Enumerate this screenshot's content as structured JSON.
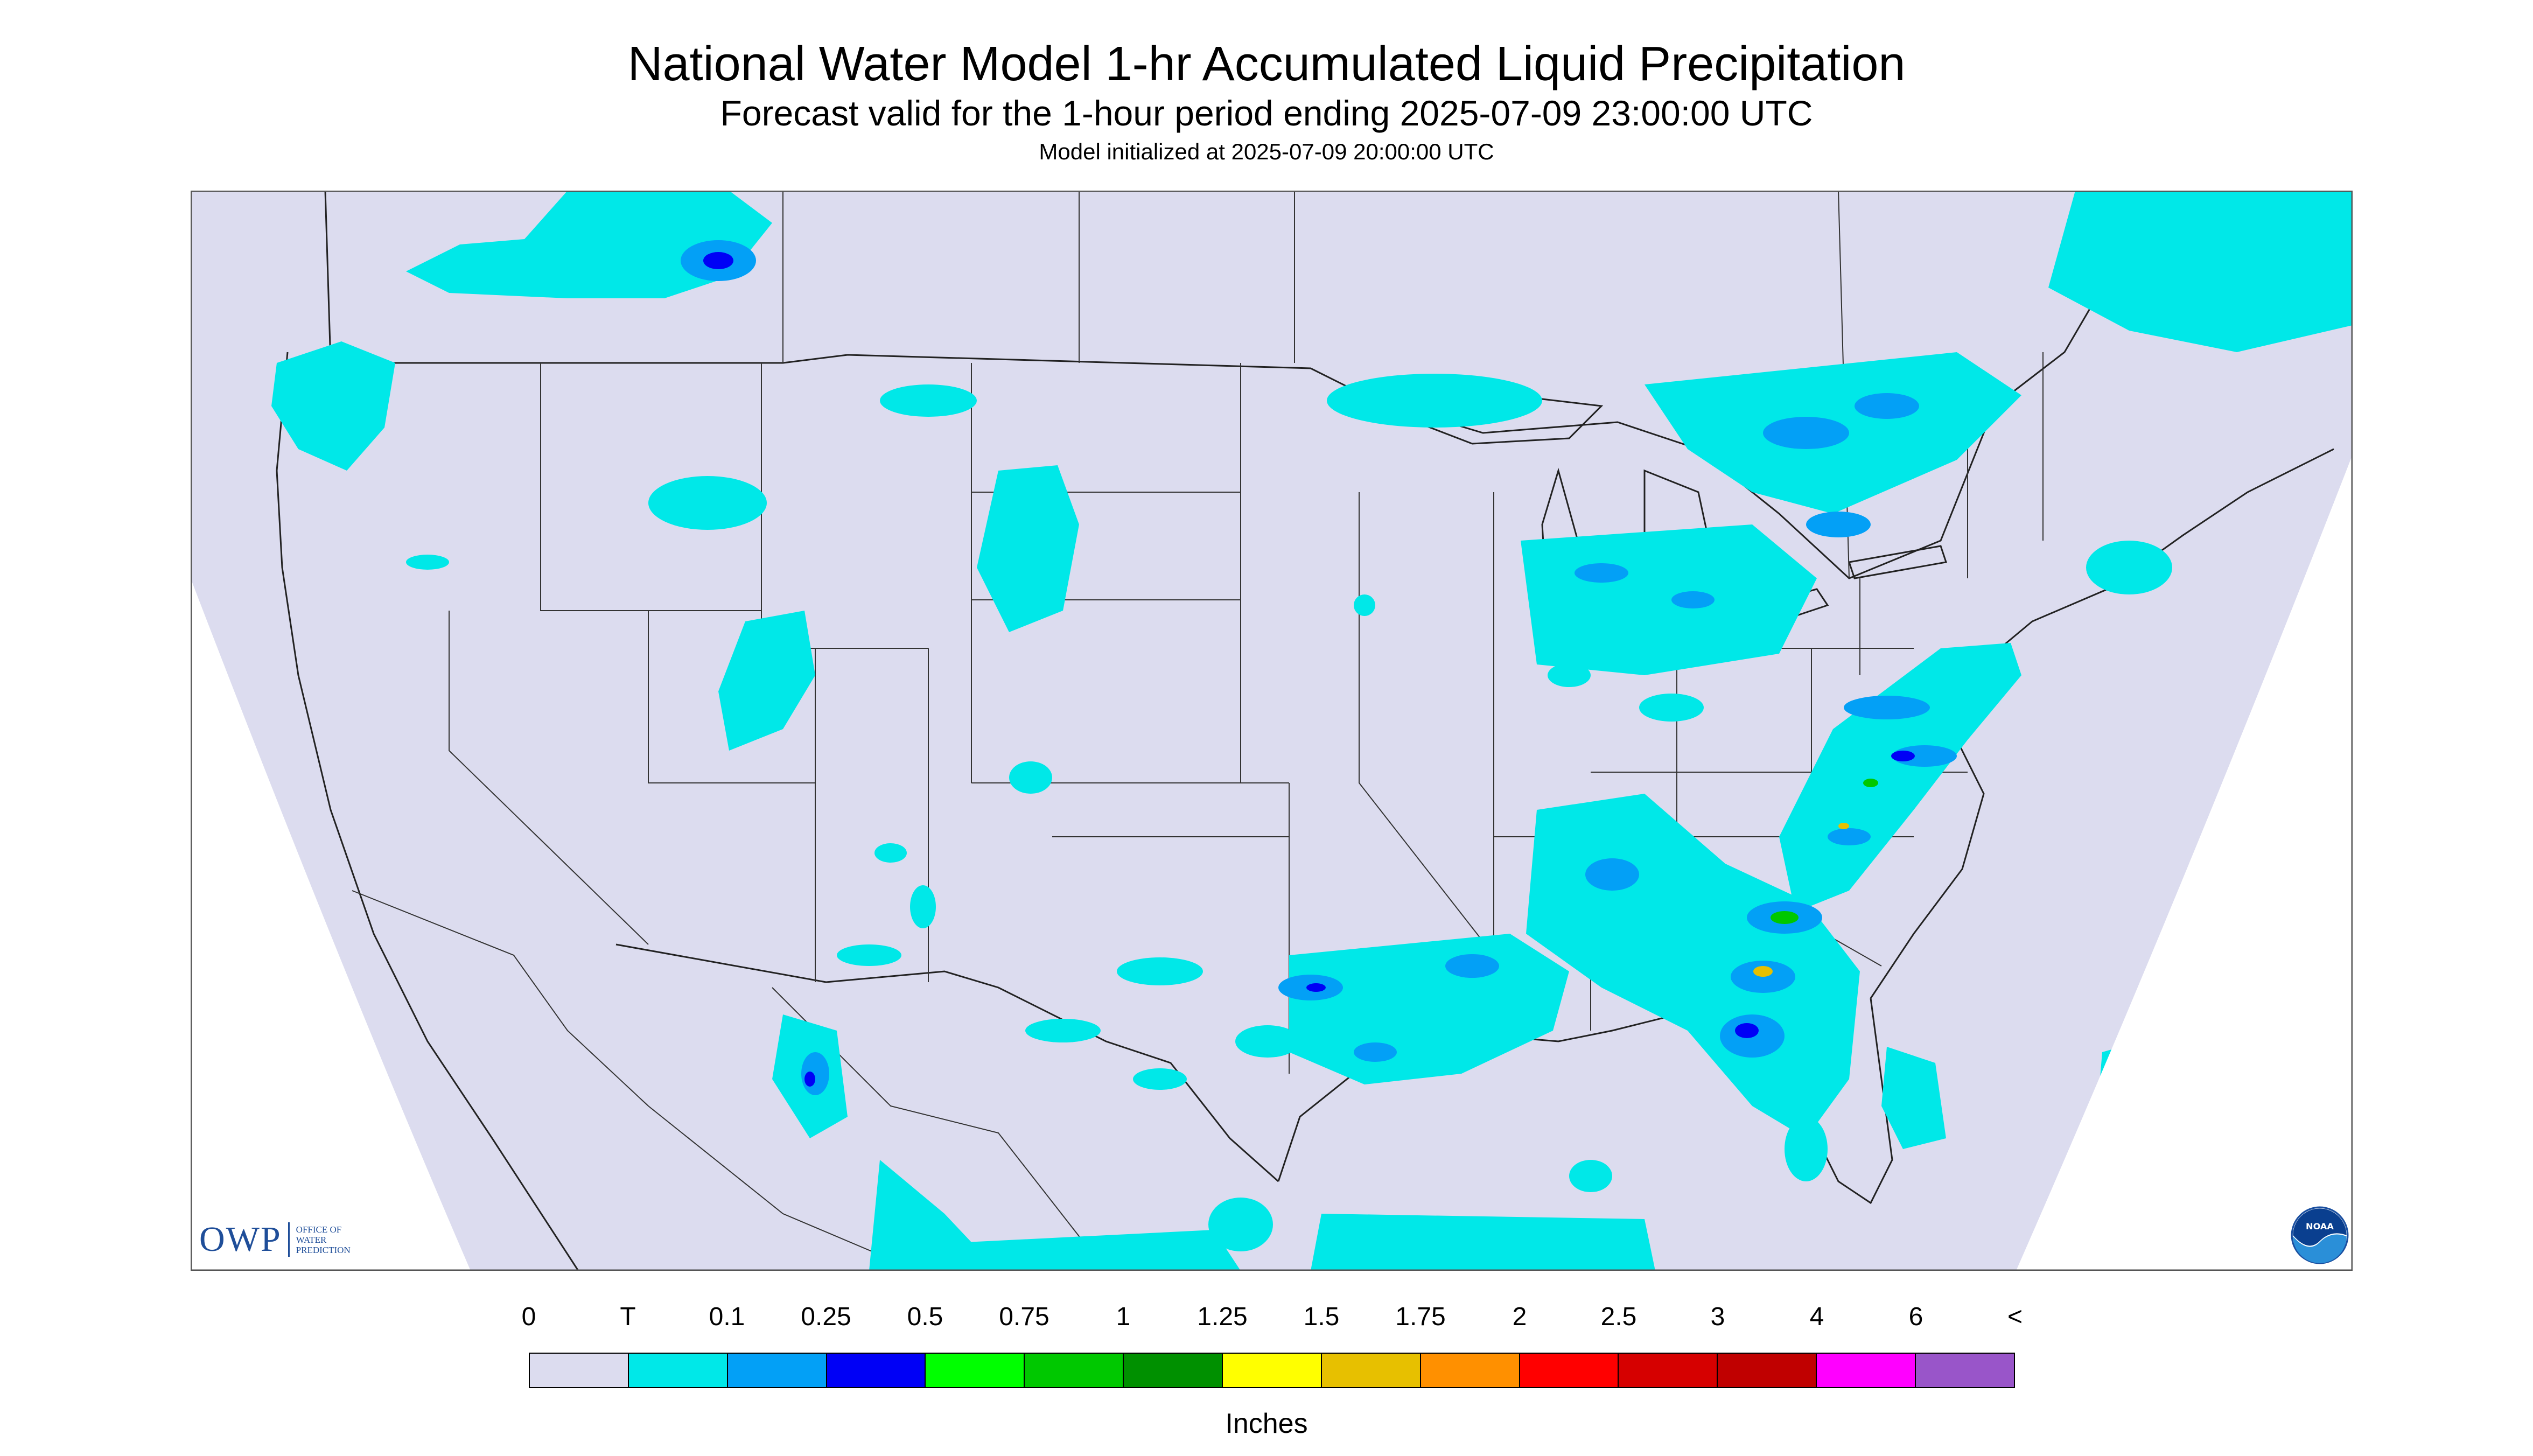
{
  "title": "National Water Model 1-hr Accumulated Liquid Precipitation",
  "subtitle": "Forecast valid for the 1-hour period ending 2025-07-09 23:00:00 UTC",
  "init_line": "Model initialized at 2025-07-09 20:00:00 UTC",
  "legend": {
    "labels": [
      "0",
      "T",
      "0.1",
      "0.25",
      "0.5",
      "0.75",
      "1",
      "1.25",
      "1.5",
      "1.75",
      "2",
      "2.5",
      "3",
      "4",
      "6",
      "<"
    ],
    "colors": [
      "#dcdcef",
      "#00e8e8",
      "#03a0f6",
      "#0000f6",
      "#00ff00",
      "#00c800",
      "#009000",
      "#ffff00",
      "#e7c000",
      "#ff9000",
      "#ff0000",
      "#d60000",
      "#c00000",
      "#ff00ff",
      "#9955c9"
    ],
    "units": "Inches"
  },
  "logos": {
    "owp_mark": "OWP",
    "owp_text": [
      "OFFICE OF",
      "WATER",
      "PREDICTION"
    ],
    "noaa_text": "NOAA"
  },
  "map": {
    "background_color": "#dcdcef",
    "outside_color": "#ffffff",
    "precip_colors": [
      "#00e8e8",
      "#03a0f6",
      "#0000f6",
      "#00c800",
      "#e7c000"
    ]
  }
}
